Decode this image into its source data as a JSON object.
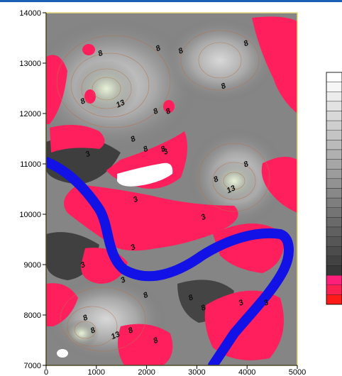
{
  "chart_data": {
    "type": "heatmap",
    "title": "",
    "xlabel": "",
    "ylabel": "",
    "xlim": [
      0,
      5000
    ],
    "ylim": [
      7000,
      14000
    ],
    "x_ticks": [
      0,
      1000,
      2000,
      3000,
      4000,
      5000
    ],
    "y_ticks": [
      7000,
      8000,
      9000,
      10000,
      11000,
      12000,
      13000,
      14000
    ],
    "x_tick_labels": [
      "0",
      "1000",
      "2000",
      "3000",
      "4000",
      "5000"
    ],
    "y_tick_labels": [
      "7000",
      "8000",
      "9000",
      "10000",
      "11000",
      "12000",
      "13000",
      "14000"
    ],
    "contour_labels": [
      {
        "text": "8",
        "x": 1100,
        "y": 13150
      },
      {
        "text": "8",
        "x": 2250,
        "y": 13250
      },
      {
        "text": "8",
        "x": 2700,
        "y": 13200
      },
      {
        "text": "8",
        "x": 4000,
        "y": 13350
      },
      {
        "text": "8",
        "x": 3550,
        "y": 12500
      },
      {
        "text": "8",
        "x": 750,
        "y": 12200
      },
      {
        "text": "13",
        "x": 1500,
        "y": 12150
      },
      {
        "text": "8",
        "x": 2200,
        "y": 12000
      },
      {
        "text": "8",
        "x": 2450,
        "y": 12000
      },
      {
        "text": "8",
        "x": 1750,
        "y": 11450
      },
      {
        "text": "8",
        "x": 2000,
        "y": 11250
      },
      {
        "text": "8",
        "x": 2350,
        "y": 11250
      },
      {
        "text": "3",
        "x": 2400,
        "y": 11200
      },
      {
        "text": "3",
        "x": 850,
        "y": 11150
      },
      {
        "text": "8",
        "x": 4000,
        "y": 10950
      },
      {
        "text": "8",
        "x": 3400,
        "y": 10650
      },
      {
        "text": "13",
        "x": 3700,
        "y": 10450
      },
      {
        "text": "3",
        "x": 1800,
        "y": 10250
      },
      {
        "text": "3",
        "x": 3150,
        "y": 9900
      },
      {
        "text": "3",
        "x": 1750,
        "y": 9300
      },
      {
        "text": "3",
        "x": 750,
        "y": 8950
      },
      {
        "text": "3",
        "x": 1550,
        "y": 8650
      },
      {
        "text": "8",
        "x": 2000,
        "y": 8350
      },
      {
        "text": "8",
        "x": 2900,
        "y": 8300
      },
      {
        "text": "8",
        "x": 3150,
        "y": 8100
      },
      {
        "text": "3",
        "x": 3900,
        "y": 8200
      },
      {
        "text": "3",
        "x": 4400,
        "y": 8200
      },
      {
        "text": "8",
        "x": 800,
        "y": 7900
      },
      {
        "text": "8",
        "x": 950,
        "y": 7650
      },
      {
        "text": "13",
        "x": 1400,
        "y": 7550
      },
      {
        "text": "8",
        "x": 1700,
        "y": 7650
      },
      {
        "text": "8",
        "x": 2200,
        "y": 7450
      }
    ],
    "legend": {
      "type": "color-scale",
      "placement": "right",
      "colors": [
        "#ffffff",
        "#f6f6f6",
        "#ececec",
        "#e2e2e2",
        "#d8d8d8",
        "#cecece",
        "#c4c4c4",
        "#bababa",
        "#b0b0b0",
        "#a6a6a6",
        "#9c9c9c",
        "#929292",
        "#888888",
        "#7e7e7e",
        "#747474",
        "#6a6a6a",
        "#606060",
        "#565656",
        "#4c4c4c",
        "#424242",
        "#383838",
        "#ff1f7a",
        "#ff1f50",
        "#ff1a1a"
      ]
    },
    "colors": {
      "low_region": "#ff1f5c",
      "river": "#1212e6",
      "contour_line": "#b5734a"
    }
  }
}
